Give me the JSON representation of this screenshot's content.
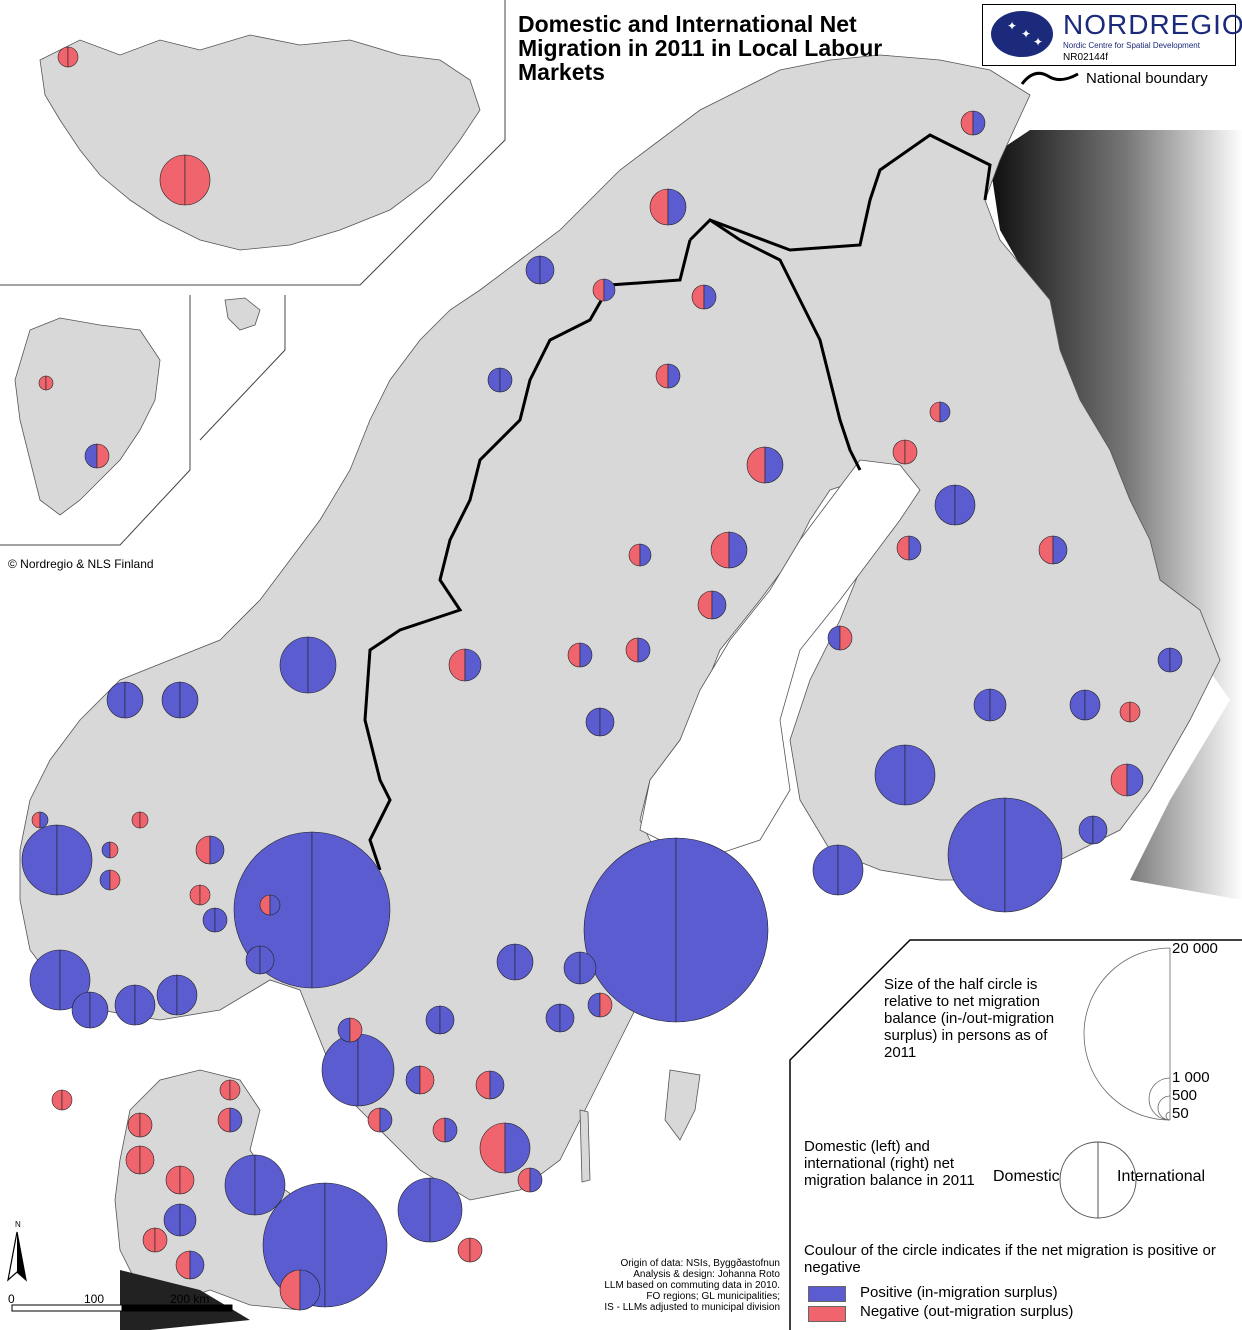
{
  "title": "Domestic and International Net Migration in 2011 in Local Labour Markets",
  "logo": {
    "name": "NORDREGIO",
    "subtitle": "Nordic Centre for Spatial Development",
    "code": "NR02144f"
  },
  "legend": {
    "boundary_label": "National boundary",
    "size_text": "Size of the half circle is relative to net migration balance (in-/out-migration surplus) in persons as of 2011",
    "size_scale_values": [
      "20 000",
      "1 000",
      "500",
      "50"
    ],
    "split_text": "Domestic (left) and international (right) net migration balance in 2011",
    "split_domestic": "Domestic",
    "split_international": "International",
    "colour_title": "Coulour of the circle indicates if the net migration is positive or negative",
    "positive_label": "Positive (in-migration surplus)",
    "negative_label": "Negative (out-migration surplus)",
    "positive_color": "#5a5ccf",
    "negative_color": "#f0656d"
  },
  "copyright": "© Nordregio & NLS Finland",
  "credits": [
    "Origin of data: NSIs, Byggðastofnun",
    "Analysis & design: Johanna Roto",
    "LLM based on commuting data in 2010.",
    "FO regions; GL municipalities;",
    "IS - LLMs adjusted to municipal division"
  ],
  "scalebar": {
    "labels": [
      "0",
      "100",
      "200 km"
    ]
  },
  "north_label": "N",
  "colors": {
    "land": "#d8d8d8",
    "sea": "#ffffff",
    "russia_dark": "#111111"
  }
}
